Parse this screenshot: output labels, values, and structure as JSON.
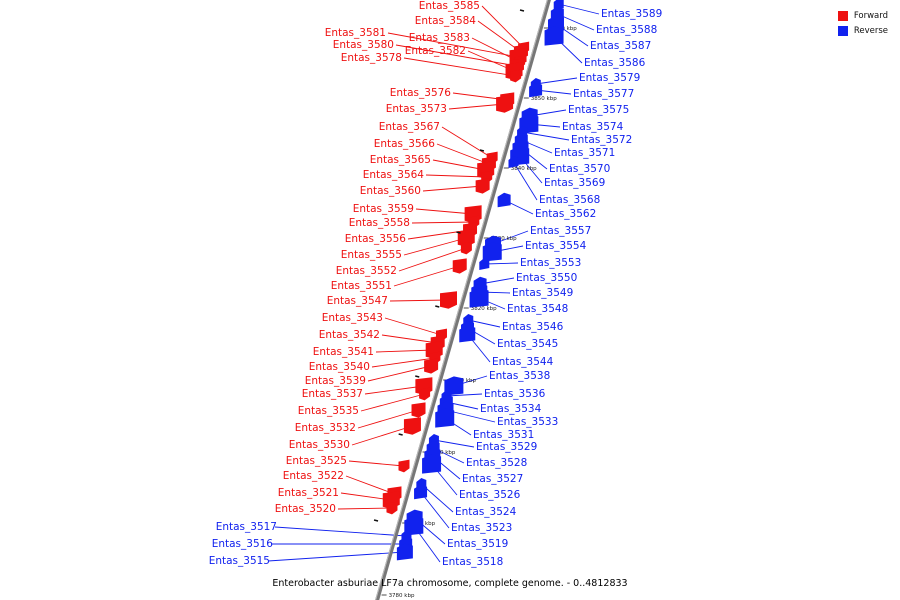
{
  "colors": {
    "forward": "#ee1111",
    "reverse": "#1122ee",
    "backbone": "#777777"
  },
  "legend": [
    {
      "label": "Forward",
      "color": "#ee1111"
    },
    {
      "label": "Reverse",
      "color": "#1122ee"
    }
  ],
  "caption": "Enterobacter asburiae LF7a chromosome, complete genome. - 0..4812833",
  "ticks": [
    "3860 kbp",
    "3850 kbp",
    "3840 kbp",
    "3830 kbp",
    "3820 kbp",
    "3810 kbp",
    "3800 kbp",
    "3790 kbp",
    "3780 kbp"
  ],
  "forward_genes": [
    "Entas_3585",
    "Entas_3584",
    "Entas_3581",
    "Entas_3583",
    "Entas_3580",
    "Entas_3582",
    "Entas_3578",
    "Entas_3576",
    "Entas_3573",
    "Entas_3567",
    "Entas_3566",
    "Entas_3565",
    "Entas_3564",
    "Entas_3560",
    "Entas_3559",
    "Entas_3558",
    "Entas_3556",
    "Entas_3555",
    "Entas_3552",
    "Entas_3551",
    "Entas_3547",
    "Entas_3543",
    "Entas_3542",
    "Entas_3541",
    "Entas_3540",
    "Entas_3539",
    "Entas_3537",
    "Entas_3535",
    "Entas_3532",
    "Entas_3530",
    "Entas_3525",
    "Entas_3522",
    "Entas_3521",
    "Entas_3520"
  ],
  "reverse_genes": [
    "Entas_3589",
    "Entas_3588",
    "Entas_3587",
    "Entas_3586",
    "Entas_3579",
    "Entas_3577",
    "Entas_3575",
    "Entas_3574",
    "Entas_3572",
    "Entas_3571",
    "Entas_3570",
    "Entas_3569",
    "Entas_3568",
    "Entas_3562",
    "Entas_3557",
    "Entas_3554",
    "Entas_3553",
    "Entas_3550",
    "Entas_3549",
    "Entas_3548",
    "Entas_3546",
    "Entas_3545",
    "Entas_3544",
    "Entas_3538",
    "Entas_3536",
    "Entas_3534",
    "Entas_3533",
    "Entas_3531",
    "Entas_3529",
    "Entas_3528",
    "Entas_3527",
    "Entas_3526",
    "Entas_3524",
    "Entas_3523",
    "Entas_3519",
    "Entas_3518",
    "Entas_3517",
    "Entas_3516",
    "Entas_3515"
  ]
}
